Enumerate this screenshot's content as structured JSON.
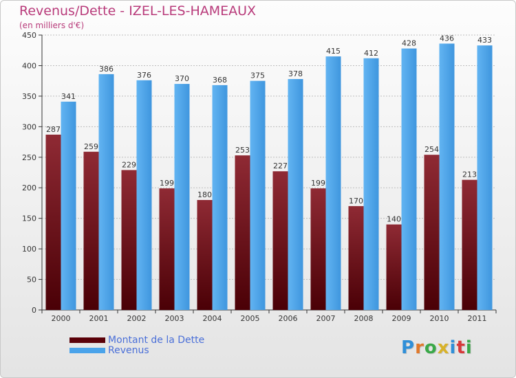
{
  "title": "Revenus/Dette - IZEL-LES-HAMEAUX",
  "subtitle": "(en milliers d'€)",
  "logo": "Proxiti",
  "colors": {
    "dette_dark": "#5a0008",
    "dette_light": "#8f2a34",
    "revenus_dark": "#2a7fc9",
    "revenus_light": "#5aaef0",
    "title": "#b83a7a",
    "legend_text": "#4a6fd8"
  },
  "chart_data": {
    "type": "bar",
    "title": "Revenus/Dette - IZEL-LES-HAMEAUX",
    "ylabel": "(en milliers d'€)",
    "xlabel": "",
    "categories": [
      "2000",
      "2001",
      "2002",
      "2003",
      "2004",
      "2005",
      "2006",
      "2007",
      "2008",
      "2009",
      "2010",
      "2011"
    ],
    "series": [
      {
        "name": "Montant de la Dette",
        "values": [
          287,
          259,
          229,
          199,
          180,
          253,
          227,
          199,
          170,
          140,
          254,
          213
        ]
      },
      {
        "name": "Revenus",
        "values": [
          341,
          386,
          376,
          370,
          368,
          375,
          378,
          415,
          412,
          428,
          436,
          433
        ]
      }
    ],
    "ylim": [
      0,
      450
    ],
    "yticks": [
      0,
      50,
      100,
      150,
      200,
      250,
      300,
      350,
      400,
      450
    ],
    "grid": true,
    "legend": "bottom-left"
  }
}
